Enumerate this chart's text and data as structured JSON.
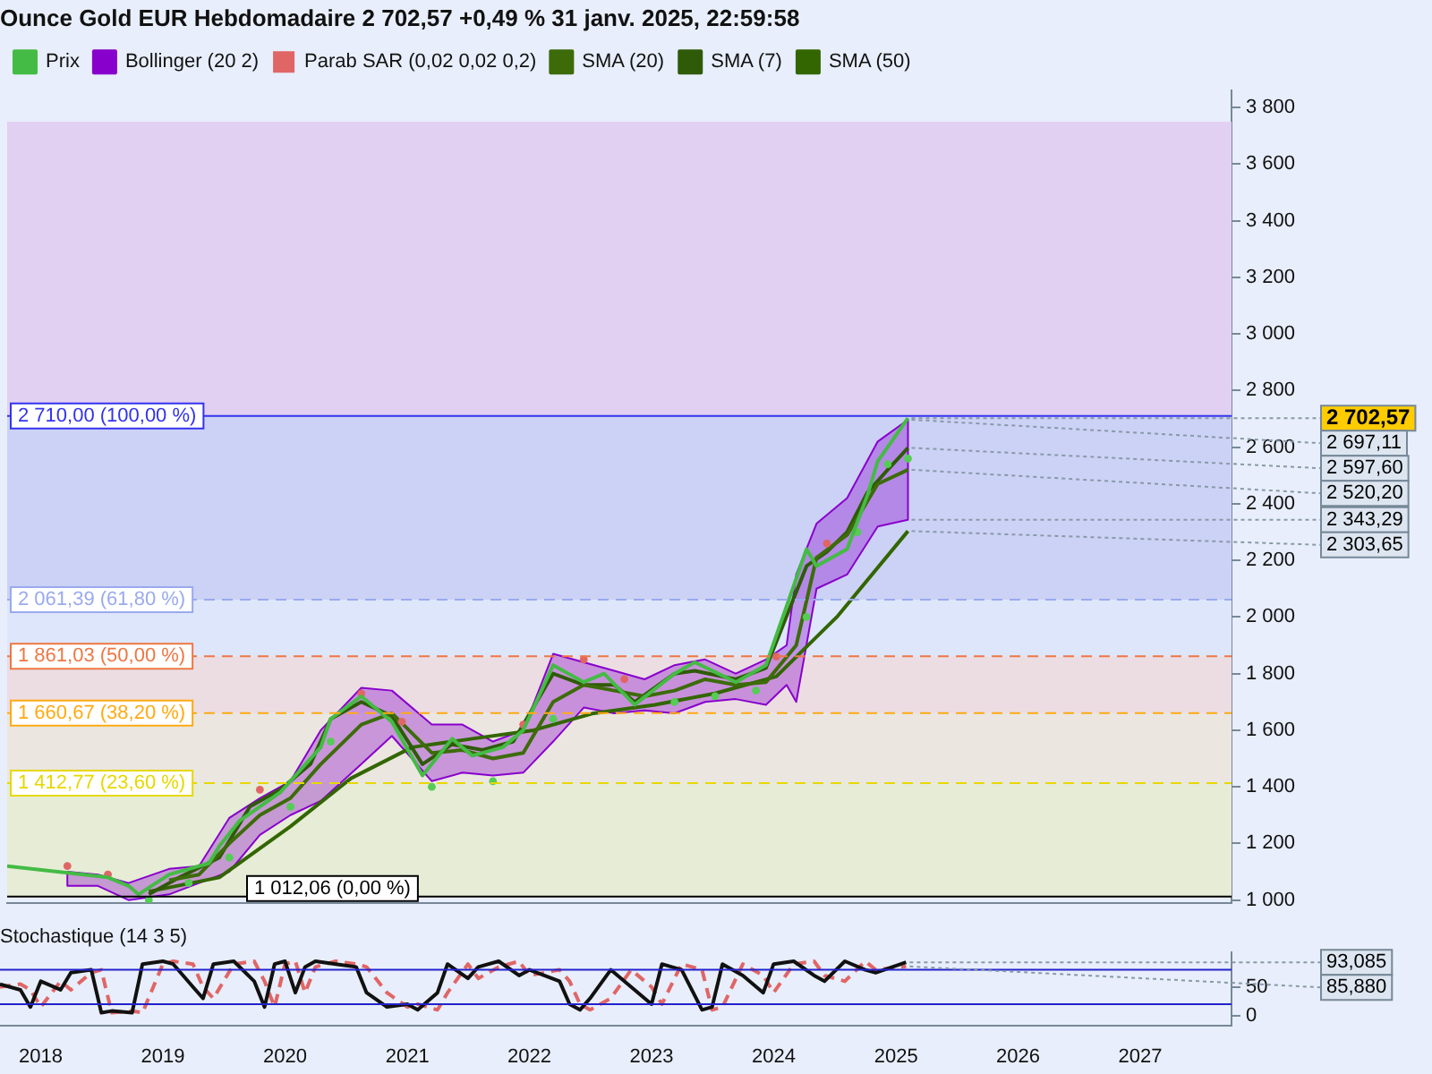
{
  "chart_data": [
    {
      "type": "line",
      "title": "Ounce Gold EUR Hebdomadaire 2 702,57 +0,49 % 31 janv. 2025, 22:59:58",
      "legend": "top left",
      "grid": false,
      "tick_labels": "y",
      "xlim": [
        "2017-09",
        "2027-10"
      ],
      "ylim": [
        990,
        3860
      ],
      "yticks": [
        {
          "value": 1000,
          "label": "1 000"
        },
        {
          "value": 1200,
          "label": "1 200"
        },
        {
          "value": 1400,
          "label": "1 400"
        },
        {
          "value": 1600,
          "label": "1 600"
        },
        {
          "value": 1800,
          "label": "1 800"
        },
        {
          "value": 2000,
          "label": "2 000"
        },
        {
          "value": 2200,
          "label": "2 200"
        },
        {
          "value": 2400,
          "label": "2 400"
        },
        {
          "value": 2600,
          "label": "2 600"
        },
        {
          "value": 2800,
          "label": "2 800"
        },
        {
          "value": 3000,
          "label": "3 000"
        },
        {
          "value": 3200,
          "label": "3 200"
        },
        {
          "value": 3400,
          "label": "3 400"
        },
        {
          "value": 3600,
          "label": "3 600"
        },
        {
          "value": 3800,
          "label": "3 800"
        }
      ],
      "series": [
        {
          "name": "Prix",
          "color": "#44bb44",
          "x": [
            "2017-09",
            "2018-07",
            "2018-09",
            "2018-10",
            "2019-01",
            "2019-05",
            "2019-06",
            "2019-08",
            "2019-12",
            "2020-04",
            "2020-05",
            "2020-08",
            "2020-11",
            "2021-02",
            "2021-05",
            "2021-07",
            "2021-10",
            "2021-12",
            "2022-03",
            "2022-06",
            "2022-08",
            "2022-11",
            "2023-03",
            "2023-05",
            "2023-09",
            "2023-12",
            "2024-04",
            "2024-05",
            "2024-08",
            "2024-10",
            "2024-11",
            "2025-01-31"
          ],
          "values": [
            1120,
            1080,
            1050,
            1020,
            1090,
            1130,
            1190,
            1280,
            1380,
            1540,
            1640,
            1720,
            1630,
            1440,
            1570,
            1510,
            1540,
            1600,
            1830,
            1770,
            1800,
            1690,
            1800,
            1840,
            1770,
            1830,
            2240,
            2180,
            2240,
            2430,
            2550,
            2702.57
          ]
        },
        {
          "name": "Bollinger (20 2)",
          "color": "#8800cc",
          "x": [
            "2018-03",
            "2018-06",
            "2018-09",
            "2019-01",
            "2019-04",
            "2019-07",
            "2019-10",
            "2020-01",
            "2020-04",
            "2020-08",
            "2020-11",
            "2021-03",
            "2021-06",
            "2021-09",
            "2021-12",
            "2022-03",
            "2022-06",
            "2022-09",
            "2022-12",
            "2023-03",
            "2023-06",
            "2023-09",
            "2023-12",
            "2024-02",
            "2024-03",
            "2024-05",
            "2024-08",
            "2024-11",
            "2025-01-31"
          ],
          "values": [
            null,
            null,
            null,
            null,
            null,
            null,
            null,
            null,
            null,
            null,
            null,
            null,
            null,
            null,
            null,
            null,
            null,
            null,
            null,
            null,
            null,
            null,
            null,
            null,
            null,
            null,
            null,
            null,
            null
          ],
          "lower": [
            1050,
            1050,
            1000,
            1020,
            1060,
            1100,
            1230,
            1300,
            1350,
            1480,
            1580,
            1420,
            1450,
            1440,
            1450,
            1560,
            1680,
            1660,
            1670,
            1660,
            1700,
            1710,
            1690,
            1760,
            1700,
            2100,
            2150,
            2320,
            2343.29
          ],
          "upper": [
            1100,
            1090,
            1060,
            1110,
            1120,
            1290,
            1360,
            1420,
            1600,
            1750,
            1740,
            1620,
            1620,
            1560,
            1600,
            1870,
            1840,
            1810,
            1780,
            1830,
            1850,
            1800,
            1850,
            1900,
            2150,
            2330,
            2420,
            2620,
            2697.11
          ]
        },
        {
          "name": "Parab SAR (0,02 0,02 0,2)",
          "type": "scatter",
          "color": "#e06666",
          "x": [
            "2018-03",
            "2018-07",
            "2018-11",
            "2019-03",
            "2019-07",
            "2019-10",
            "2020-01",
            "2020-05",
            "2020-08",
            "2020-12",
            "2021-03",
            "2021-09",
            "2021-12",
            "2022-03",
            "2022-06",
            "2022-10",
            "2023-03",
            "2023-07",
            "2023-11",
            "2024-01",
            "2024-04",
            "2024-06",
            "2024-09",
            "2024-12",
            "2025-01-31"
          ],
          "values": [
            1120,
            1090,
            1000,
            1060,
            1150,
            1390,
            1330,
            1560,
            1730,
            1630,
            1400,
            1420,
            1620,
            1640,
            1850,
            1780,
            1700,
            1720,
            1740,
            1860,
            2000,
            2260,
            2300,
            2540,
            2560
          ],
          "colors": [
            "#e06666",
            "#e06666",
            "#55cc55",
            "#55cc55",
            "#55cc55",
            "#e06666",
            "#55cc55",
            "#55cc55",
            "#e06666",
            "#e06666",
            "#55cc55",
            "#55cc55",
            "#e06666",
            "#55cc55",
            "#e06666",
            "#e06666",
            "#55cc55",
            "#55cc55",
            "#55cc55",
            "#e06666",
            "#55cc55",
            "#e06666",
            "#55cc55",
            "#55cc55",
            "#55cc55"
          ]
        },
        {
          "name": "SMA (20)",
          "color": "#3d6b0a",
          "x": [
            "2019-01",
            "2019-04",
            "2019-07",
            "2019-10",
            "2020-01",
            "2020-04",
            "2020-08",
            "2020-11",
            "2021-03",
            "2021-06",
            "2021-09",
            "2021-12",
            "2022-03",
            "2022-06",
            "2022-09",
            "2022-12",
            "2023-03",
            "2023-06",
            "2023-09",
            "2023-12",
            "2024-03",
            "2024-05",
            "2024-08",
            "2024-11",
            "2025-01-31"
          ],
          "values": [
            1070,
            1090,
            1200,
            1300,
            1360,
            1480,
            1620,
            1660,
            1520,
            1530,
            1500,
            1520,
            1700,
            1760,
            1740,
            1720,
            1740,
            1780,
            1760,
            1770,
            1900,
            2210,
            2290,
            2470,
            2520.2
          ]
        },
        {
          "name": "SMA (7)",
          "color": "#2f5a08",
          "x": [
            "2018-11",
            "2019-02",
            "2019-06",
            "2019-09",
            "2019-12",
            "2020-03",
            "2020-05",
            "2020-08",
            "2020-11",
            "2021-02",
            "2021-05",
            "2021-08",
            "2021-11",
            "2022-03",
            "2022-06",
            "2022-09",
            "2022-11",
            "2023-03",
            "2023-05",
            "2023-09",
            "2023-12",
            "2024-04",
            "2024-06",
            "2024-08",
            "2024-10",
            "2024-12",
            "2025-01-31"
          ],
          "values": [
            1020,
            1080,
            1150,
            1330,
            1390,
            1480,
            1640,
            1700,
            1650,
            1480,
            1550,
            1530,
            1560,
            1800,
            1760,
            1760,
            1700,
            1800,
            1810,
            1780,
            1820,
            2180,
            2230,
            2300,
            2440,
            2520,
            2597.6
          ]
        },
        {
          "name": "SMA (50)",
          "color": "#336600",
          "x": [
            "2018-11",
            "2019-06",
            "2020-01",
            "2020-07",
            "2021-01",
            "2021-07",
            "2022-01",
            "2022-07",
            "2023-01",
            "2023-07",
            "2024-01",
            "2024-07",
            "2025-01-31"
          ],
          "values": [
            1030,
            1080,
            1260,
            1430,
            1540,
            1570,
            1600,
            1660,
            1690,
            1730,
            1790,
            2000,
            2303.65
          ]
        }
      ],
      "bands": [
        {
          "axis": "y",
          "from": 1012.06,
          "to": 1412.77,
          "color": "#e6ecd6"
        },
        {
          "axis": "y",
          "from": 1412.77,
          "to": 1660.67,
          "color": "#ebe6e0"
        },
        {
          "axis": "y",
          "from": 1660.67,
          "to": 1861.03,
          "color": "#ecdde3"
        },
        {
          "axis": "y",
          "from": 1861.03,
          "to": 2061.39,
          "color": "#dde6fb"
        },
        {
          "axis": "y",
          "from": 2061.39,
          "to": 2710,
          "color": "#ccd2f5"
        },
        {
          "axis": "y",
          "from": 2710,
          "to": 3750,
          "color": "#e2d0f2"
        }
      ],
      "ref_lines": [
        {
          "axis": "y",
          "value": 2710,
          "label": "2 710,00 (100,00 %)",
          "color": "#3333ee",
          "line_style": "solid"
        },
        {
          "axis": "y",
          "value": 2061.39,
          "label": "2 061,39 (61,80 %)",
          "color": "#99aaee",
          "line_style": "dashed"
        },
        {
          "axis": "y",
          "value": 1861.03,
          "label": "1 861,03 (50,00 %)",
          "color": "#ee7744",
          "line_style": "dashed"
        },
        {
          "axis": "y",
          "value": 1660.67,
          "label": "1 660,67 (38,20 %)",
          "color": "#ffaa11",
          "line_style": "dashed"
        },
        {
          "axis": "y",
          "value": 1412.77,
          "label": "1 412,77 (23,60 %)",
          "color": "#e6d800",
          "line_style": "dashed"
        },
        {
          "axis": "y",
          "value": 1012.06,
          "label": "1 012,06 (0,00 %)",
          "color": "#000000",
          "line_style": "solid"
        }
      ],
      "annotations": [
        {
          "text": "2 702,57",
          "x": "2025-01-31",
          "y": 2702.57
        },
        {
          "text": "2 697,11",
          "x": "2025-01-31",
          "y": 2697.11
        },
        {
          "text": "2 597,60",
          "x": "2025-01-31",
          "y": 2597.6
        },
        {
          "text": "2 520,20",
          "x": "2025-01-31",
          "y": 2520.2
        },
        {
          "text": "2 343,29",
          "x": "2025-01-31",
          "y": 2343.29
        },
        {
          "text": "2 303,65",
          "x": "2025-01-31",
          "y": 2303.65
        }
      ]
    },
    {
      "type": "line",
      "title": "Stochastique (14 3 5)",
      "grid": false,
      "legend": false,
      "xlim": [
        "2017-09",
        "2027-10"
      ],
      "xticks": [
        {
          "value": "2018",
          "label": "2018"
        },
        {
          "value": "2019",
          "label": "2019"
        },
        {
          "value": "2020",
          "label": "2020"
        },
        {
          "value": "2021",
          "label": "2021"
        },
        {
          "value": "2022",
          "label": "2022"
        },
        {
          "value": "2023",
          "label": "2023"
        },
        {
          "value": "2024",
          "label": "2024"
        },
        {
          "value": "2025",
          "label": "2025"
        },
        {
          "value": "2026",
          "label": "2026"
        },
        {
          "value": "2027",
          "label": "2027"
        }
      ],
      "ylim": [
        -17,
        110
      ],
      "yticks": [
        0,
        50
      ],
      "x": [
        "2017-09",
        "2017-11",
        "2017-12",
        "2018-01",
        "2018-03",
        "2018-04",
        "2018-06",
        "2018-07",
        "2018-08",
        "2018-10",
        "2018-11",
        "2019-01",
        "2019-02",
        "2019-04",
        "2019-05",
        "2019-06",
        "2019-08",
        "2019-10",
        "2019-11",
        "2019-12",
        "2020-01",
        "2020-02",
        "2020-03",
        "2020-04",
        "2020-06",
        "2020-08",
        "2020-09",
        "2020-11",
        "2021-01",
        "2021-02",
        "2021-04",
        "2021-05",
        "2021-07",
        "2021-08",
        "2021-10",
        "2021-12",
        "2022-01",
        "2022-04",
        "2022-05",
        "2022-06",
        "2022-07",
        "2022-09",
        "2022-11",
        "2023-01",
        "2023-02",
        "2023-04",
        "2023-06",
        "2023-07",
        "2023-08",
        "2023-10",
        "2023-12",
        "2024-01",
        "2024-03",
        "2024-05",
        "2024-06",
        "2024-08",
        "2024-10",
        "2024-11",
        "2025-01-31"
      ],
      "series": [
        {
          "color": "#111111",
          "line_style": "solid",
          "values": [
            55,
            45,
            15,
            60,
            45,
            75,
            80,
            5,
            8,
            5,
            90,
            95,
            90,
            50,
            30,
            90,
            95,
            60,
            15,
            90,
            95,
            40,
            85,
            95,
            90,
            85,
            40,
            15,
            20,
            10,
            40,
            90,
            65,
            85,
            95,
            70,
            80,
            60,
            20,
            10,
            30,
            80,
            50,
            20,
            90,
            80,
            10,
            15,
            90,
            70,
            40,
            90,
            95,
            70,
            60,
            95,
            80,
            75,
            93.085
          ]
        },
        {
          "color": "#e06666",
          "line_style": "dashed",
          "values": [
            50,
            55,
            45,
            15,
            60,
            45,
            75,
            80,
            5,
            8,
            5,
            90,
            95,
            90,
            50,
            30,
            90,
            95,
            60,
            15,
            90,
            95,
            40,
            85,
            95,
            90,
            85,
            40,
            15,
            20,
            10,
            40,
            90,
            65,
            85,
            95,
            70,
            80,
            60,
            20,
            10,
            30,
            80,
            50,
            20,
            90,
            80,
            10,
            15,
            90,
            70,
            40,
            90,
            95,
            70,
            60,
            95,
            80,
            85.88
          ]
        }
      ],
      "ref_lines": [
        {
          "axis": "y",
          "value": 80,
          "color": "#2222cc"
        },
        {
          "axis": "y",
          "value": 20,
          "color": "#2222cc"
        }
      ],
      "annotations": [
        {
          "text": "93,085",
          "x": "2025-01-31",
          "y": 93.085
        },
        {
          "text": "85,880",
          "x": "2025-01-31",
          "y": 85.88
        }
      ]
    }
  ]
}
